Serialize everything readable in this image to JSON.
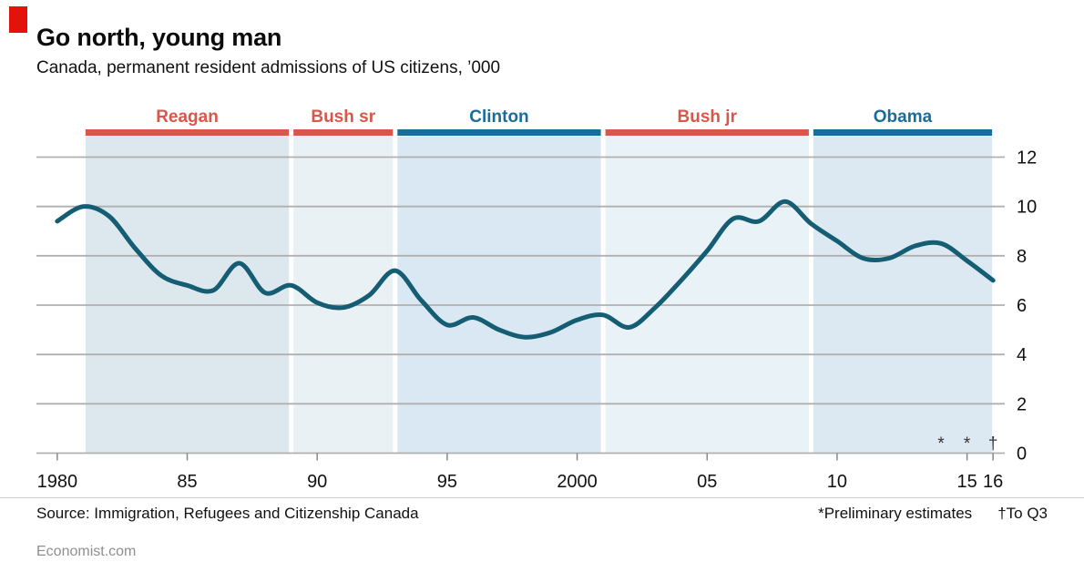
{
  "colors": {
    "brand_red": "#e3120b",
    "line": "#155d72",
    "grid": "#b0b0b0",
    "republican_red": "#d9564b",
    "democrat_blue": "#1b6d99"
  },
  "header": {
    "title": "Go north, young man",
    "subtitle": "Canada, permanent resident admissions of US citizens, ’000"
  },
  "chart_data": {
    "type": "line",
    "title": "Go north, young man",
    "subtitle": "Canada, permanent resident admissions of US citizens, ’000",
    "xlim": [
      1979.2,
      2016.45
    ],
    "ylim": [
      0,
      12
    ],
    "yticks": [
      0,
      2,
      4,
      6,
      8,
      10,
      12
    ],
    "y_axis_side": "right",
    "grid": true,
    "grid_color": "#b0b0b0",
    "line_color": "#155d72",
    "xticks": [
      {
        "year": 1980,
        "label": "1980"
      },
      {
        "year": 1985,
        "label": "85"
      },
      {
        "year": 1990,
        "label": "90"
      },
      {
        "year": 1995,
        "label": "95"
      },
      {
        "year": 2000,
        "label": "2000"
      },
      {
        "year": 2005,
        "label": "05"
      },
      {
        "year": 2010,
        "label": "10"
      },
      {
        "year": 2015,
        "label": "15"
      },
      {
        "year": 2016,
        "label": "16"
      }
    ],
    "bands": [
      {
        "label": "Reagan",
        "start": 1981,
        "end": 1989,
        "bar_color": "#d9564b",
        "label_color": "#d9564b",
        "fill": "#dde8ee"
      },
      {
        "label": "Bush sr",
        "start": 1989,
        "end": 1993,
        "bar_color": "#d9564b",
        "label_color": "#d9564b",
        "fill": "#e9f1f5"
      },
      {
        "label": "Clinton",
        "start": 1993,
        "end": 2001,
        "bar_color": "#1b6d99",
        "label_color": "#1b6d99",
        "fill": "#d9e8f2"
      },
      {
        "label": "Bush jr",
        "start": 2001,
        "end": 2009,
        "bar_color": "#d9564b",
        "label_color": "#d9564b",
        "fill": "#e9f2f7"
      },
      {
        "label": "Obama",
        "start": 2009,
        "end": 2016.05,
        "bar_color": "#1b6d99",
        "label_color": "#1b6d99",
        "fill": "#dde9f2"
      }
    ],
    "series": [
      {
        "name": "Canada, permanent resident admissions of US citizens, ’000",
        "x": [
          1980,
          1981,
          1982,
          1983,
          1984,
          1985,
          1986,
          1987,
          1988,
          1989,
          1990,
          1991,
          1992,
          1993,
          1994,
          1995,
          1996,
          1997,
          1998,
          1999,
          2000,
          2001,
          2002,
          2003,
          2004,
          2005,
          2006,
          2007,
          2008,
          2009,
          2010,
          2011,
          2012,
          2013,
          2014,
          2015,
          2016
        ],
        "values": [
          9.4,
          10.0,
          9.6,
          8.3,
          7.2,
          6.8,
          6.6,
          7.7,
          6.5,
          6.8,
          6.1,
          5.9,
          6.4,
          7.4,
          6.2,
          5.2,
          5.5,
          5.0,
          4.7,
          4.9,
          5.4,
          5.6,
          5.1,
          5.9,
          7.0,
          8.2,
          9.5,
          9.4,
          10.2,
          9.3,
          8.6,
          7.9,
          7.9,
          8.4,
          8.5,
          7.8,
          7.0
        ]
      }
    ],
    "markers": [
      {
        "year": 2014,
        "symbol": "*",
        "name": "asterisk"
      },
      {
        "year": 2015,
        "symbol": "*",
        "name": "asterisk"
      },
      {
        "year": 2016,
        "symbol": "†",
        "name": "dagger"
      }
    ]
  },
  "footer": {
    "source": "Source: Immigration, Refugees and Citizenship Canada",
    "note_preliminary": "*Preliminary estimates",
    "note_q3": "†To Q3",
    "site": "Economist.com"
  }
}
